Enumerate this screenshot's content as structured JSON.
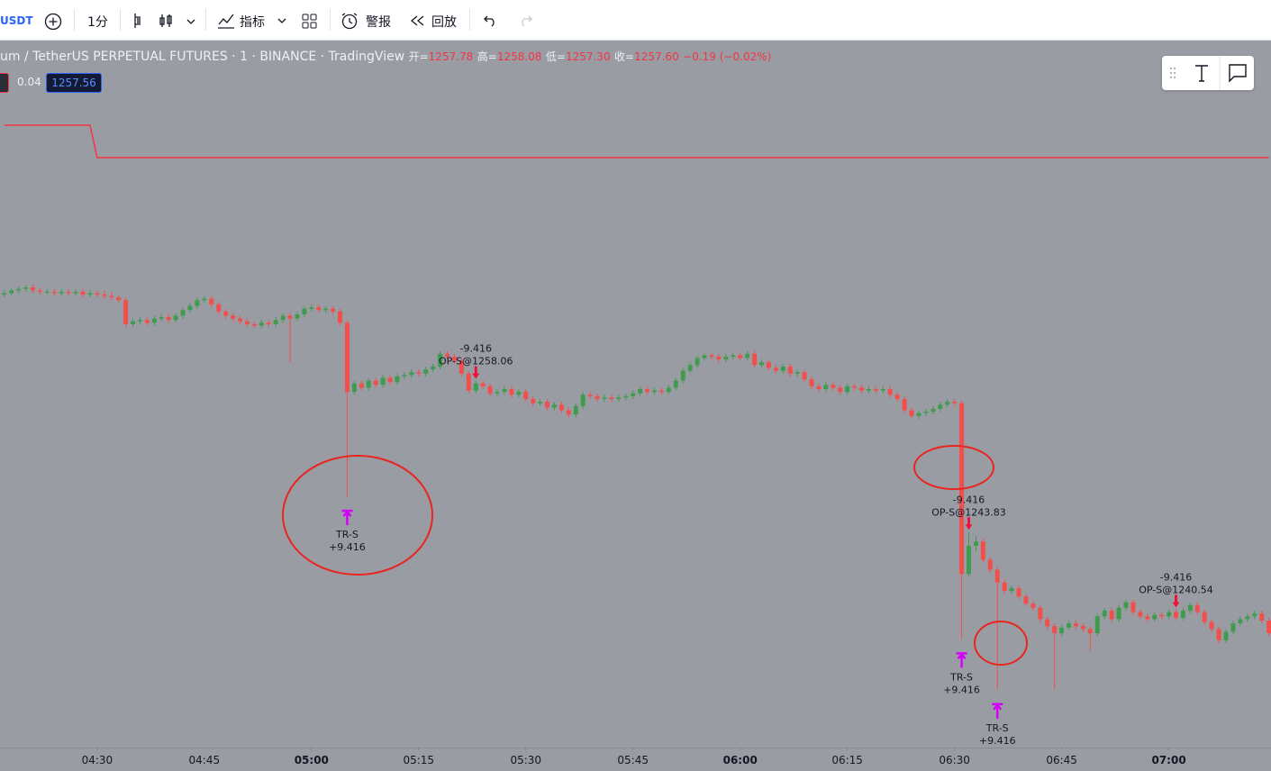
{
  "toolbar": {
    "symbol": "USDT",
    "interval": "1分",
    "indicators": "指标",
    "alerts": "警报",
    "replay": "回放"
  },
  "legend": {
    "title": "um / TetherUS PERPETUAL FUTURES · 1 · BINANCE · TradingView",
    "open_label": "开=",
    "open": "1257.78",
    "high_label": "高=",
    "high": "1258.08",
    "low_label": "低=",
    "low": "1257.30",
    "close_label": "收=",
    "close": "1257.60",
    "change": "−0.19 (−0.02%)",
    "indicator_value": "0.04",
    "price_badge": "1257.56"
  },
  "chart_data": {
    "type": "candlestick",
    "x": [
      257,
      258,
      259,
      260,
      261,
      262,
      263,
      264,
      265,
      266,
      267,
      268,
      269,
      270,
      271,
      272,
      273,
      274,
      275,
      276,
      277,
      278,
      279,
      280,
      281,
      282,
      283,
      284,
      285,
      286,
      287,
      288,
      289,
      290,
      291,
      292,
      293,
      294,
      295,
      296,
      297,
      298,
      299,
      300,
      301,
      302,
      303,
      304,
      305,
      306,
      307,
      308,
      309,
      310,
      311,
      312,
      313,
      314,
      315,
      316,
      317,
      318,
      319,
      320,
      321,
      322,
      323,
      324,
      325,
      326,
      327,
      328,
      329,
      330,
      331,
      332,
      333,
      334,
      335,
      336,
      337,
      338,
      339,
      340,
      341,
      342,
      343,
      344,
      345,
      346,
      347,
      348,
      349,
      350,
      351,
      352,
      353,
      354,
      355,
      356,
      357,
      358,
      359,
      360,
      361,
      362,
      363,
      364,
      365,
      366,
      367,
      368,
      369,
      370,
      371,
      372,
      373,
      374,
      375,
      376,
      377,
      378,
      379,
      380,
      381,
      382,
      383,
      384,
      385,
      386,
      387,
      388,
      389,
      390,
      391,
      392,
      393,
      394,
      395,
      396,
      397,
      398,
      399,
      400,
      401,
      402,
      403,
      404,
      405,
      406,
      407,
      408,
      409,
      410,
      411,
      412,
      413,
      414,
      415,
      416,
      417,
      418,
      419,
      420,
      421,
      422,
      423,
      424,
      425,
      426,
      427,
      428,
      429,
      430,
      431,
      432,
      433,
      434
    ],
    "open": [
      1263.4,
      1263.5,
      1263.7,
      1263.8,
      1263.9,
      1263.7,
      1263.6,
      1263.6,
      1263.5,
      1263.6,
      1263.5,
      1263.6,
      1263.4,
      1263.5,
      1263.4,
      1263.3,
      1263.2,
      1263.0,
      1261.3,
      1261.5,
      1261.6,
      1261.4,
      1261.7,
      1261.8,
      1261.6,
      1261.9,
      1262.3,
      1262.6,
      1263.0,
      1263.1,
      1262.7,
      1262.2,
      1261.9,
      1261.7,
      1261.5,
      1261.3,
      1261.2,
      1261.4,
      1261.3,
      1261.6,
      1261.9,
      1261.7,
      1262.0,
      1262.4,
      1262.5,
      1262.3,
      1262.4,
      1262.2,
      1261.4,
      1256.5,
      1257.1,
      1256.8,
      1257.3,
      1257.0,
      1257.5,
      1257.2,
      1257.6,
      1257.7,
      1257.9,
      1257.8,
      1258.1,
      1258.3,
      1259.2,
      1259.0,
      1258.7,
      1257.8,
      1256.6,
      1257.1,
      1256.9,
      1256.4,
      1256.5,
      1256.7,
      1256.3,
      1256.5,
      1256.0,
      1255.7,
      1255.8,
      1255.4,
      1255.6,
      1255.2,
      1254.9,
      1255.5,
      1256.3,
      1256.2,
      1256.0,
      1256.1,
      1256.0,
      1256.1,
      1256.2,
      1256.4,
      1256.7,
      1256.5,
      1256.6,
      1256.5,
      1256.8,
      1257.3,
      1258.0,
      1258.4,
      1258.9,
      1259.1,
      1259.0,
      1258.8,
      1259.0,
      1259.1,
      1258.9,
      1259.2,
      1258.4,
      1258.6,
      1258.2,
      1258.0,
      1258.3,
      1257.8,
      1257.9,
      1257.4,
      1256.9,
      1256.7,
      1257.0,
      1256.8,
      1256.5,
      1256.9,
      1256.8,
      1256.6,
      1256.7,
      1256.6,
      1256.7,
      1256.3,
      1256.0,
      1255.2,
      1254.8,
      1255.0,
      1255.1,
      1255.3,
      1255.6,
      1255.8,
      1255.7,
      1243.6,
      1245.6,
      1245.9,
      1244.6,
      1243.9,
      1243.0,
      1242.4,
      1242.6,
      1242.0,
      1241.5,
      1241.2,
      1240.4,
      1239.9,
      1239.4,
      1239.8,
      1240.1,
      1239.9,
      1239.7,
      1239.4,
      1240.6,
      1241.0,
      1240.4,
      1241.2,
      1241.6,
      1240.9,
      1240.6,
      1240.4,
      1240.7,
      1240.6,
      1240.9,
      1240.5,
      1241.0,
      1241.4,
      1240.9,
      1240.2,
      1239.7,
      1238.9,
      1239.5,
      1240.1,
      1240.4,
      1240.6,
      1240.8,
      1240.3
    ],
    "high": [
      1263.7,
      1263.9,
      1264.0,
      1264.1,
      1264.1,
      1263.9,
      1263.8,
      1263.8,
      1263.8,
      1263.8,
      1263.8,
      1263.8,
      1263.7,
      1263.7,
      1263.7,
      1263.6,
      1263.4,
      1263.2,
      1261.7,
      1261.8,
      1261.8,
      1261.9,
      1262.0,
      1262.0,
      1262.1,
      1262.5,
      1262.8,
      1263.2,
      1263.3,
      1263.3,
      1262.9,
      1262.4,
      1262.1,
      1261.9,
      1261.7,
      1261.5,
      1261.6,
      1261.6,
      1261.8,
      1262.1,
      1262.1,
      1262.2,
      1262.6,
      1262.7,
      1262.7,
      1262.6,
      1262.6,
      1262.4,
      1261.6,
      1257.3,
      1257.3,
      1257.5,
      1257.5,
      1257.7,
      1257.7,
      1257.8,
      1257.9,
      1258.1,
      1258.1,
      1258.3,
      1258.5,
      1259.4,
      1259.4,
      1259.2,
      1258.9,
      1258.0,
      1257.3,
      1257.3,
      1257.1,
      1256.7,
      1256.9,
      1256.9,
      1256.7,
      1256.7,
      1256.2,
      1256.0,
      1256.0,
      1255.8,
      1255.8,
      1255.4,
      1255.7,
      1256.5,
      1256.5,
      1256.4,
      1256.3,
      1256.3,
      1256.3,
      1256.4,
      1256.6,
      1256.9,
      1256.9,
      1256.8,
      1256.8,
      1257.0,
      1257.5,
      1258.2,
      1258.6,
      1259.1,
      1259.3,
      1259.3,
      1259.2,
      1259.2,
      1259.3,
      1259.3,
      1259.4,
      1259.4,
      1258.8,
      1258.8,
      1258.4,
      1258.5,
      1258.5,
      1258.1,
      1258.1,
      1257.6,
      1257.1,
      1257.2,
      1257.2,
      1257.0,
      1257.1,
      1257.1,
      1257.0,
      1256.9,
      1256.9,
      1256.9,
      1256.9,
      1256.5,
      1256.2,
      1255.4,
      1255.2,
      1255.3,
      1255.5,
      1255.8,
      1256.0,
      1256.0,
      1255.9,
      1246.6,
      1246.3,
      1246.1,
      1244.8,
      1244.1,
      1243.2,
      1242.8,
      1242.8,
      1242.2,
      1241.7,
      1241.4,
      1240.6,
      1240.1,
      1240.0,
      1240.3,
      1240.3,
      1240.1,
      1239.9,
      1240.8,
      1241.2,
      1241.2,
      1241.4,
      1241.8,
      1241.8,
      1241.1,
      1240.8,
      1240.9,
      1240.9,
      1241.1,
      1241.1,
      1241.2,
      1241.6,
      1241.6,
      1241.1,
      1240.4,
      1239.9,
      1239.7,
      1240.3,
      1240.6,
      1240.8,
      1241.0,
      1241.0,
      1240.5
    ],
    "low": [
      1263.2,
      1263.3,
      1263.5,
      1263.6,
      1263.5,
      1263.4,
      1263.4,
      1263.3,
      1263.3,
      1263.3,
      1263.3,
      1263.2,
      1263.2,
      1263.2,
      1263.1,
      1263.0,
      1262.8,
      1261.1,
      1261.1,
      1261.3,
      1261.2,
      1261.2,
      1261.5,
      1261.4,
      1261.4,
      1261.7,
      1262.1,
      1262.4,
      1262.8,
      1262.5,
      1262.0,
      1261.7,
      1261.5,
      1261.3,
      1261.1,
      1261.0,
      1261.0,
      1261.1,
      1261.1,
      1261.4,
      1258.6,
      1261.5,
      1261.8,
      1262.2,
      1262.1,
      1262.1,
      1262.0,
      1261.2,
      1249.1,
      1256.3,
      1256.6,
      1256.6,
      1256.8,
      1256.8,
      1257.0,
      1257.0,
      1257.4,
      1257.5,
      1257.6,
      1257.6,
      1257.9,
      1258.1,
      1258.8,
      1258.5,
      1257.6,
      1256.4,
      1256.4,
      1256.7,
      1256.2,
      1256.2,
      1256.3,
      1256.1,
      1256.1,
      1255.8,
      1255.5,
      1255.5,
      1255.2,
      1255.2,
      1255.0,
      1254.7,
      1254.7,
      1255.3,
      1256.0,
      1255.8,
      1255.8,
      1255.8,
      1255.8,
      1255.9,
      1256.0,
      1256.2,
      1256.3,
      1256.3,
      1256.3,
      1256.3,
      1256.6,
      1257.1,
      1257.8,
      1258.2,
      1258.7,
      1258.8,
      1258.6,
      1258.6,
      1258.8,
      1258.7,
      1258.7,
      1258.2,
      1258.2,
      1258.0,
      1257.8,
      1257.8,
      1257.6,
      1257.6,
      1257.2,
      1256.7,
      1256.5,
      1256.5,
      1256.6,
      1256.3,
      1256.3,
      1256.6,
      1256.4,
      1256.4,
      1256.4,
      1256.4,
      1256.1,
      1255.8,
      1255.0,
      1254.6,
      1254.6,
      1254.8,
      1254.9,
      1255.1,
      1255.4,
      1255.5,
      1239.0,
      1243.4,
      1245.2,
      1244.4,
      1243.7,
      1235.4,
      1242.2,
      1242.2,
      1241.8,
      1241.3,
      1241.0,
      1240.2,
      1239.7,
      1235.4,
      1239.2,
      1239.6,
      1239.7,
      1239.5,
      1238.2,
      1239.2,
      1240.4,
      1240.2,
      1240.2,
      1241.0,
      1240.7,
      1240.4,
      1240.2,
      1240.2,
      1240.4,
      1240.4,
      1240.3,
      1240.3,
      1240.8,
      1240.7,
      1240.0,
      1239.5,
      1238.7,
      1238.7,
      1239.3,
      1239.9,
      1240.2,
      1240.4,
      1240.1,
      1239.2
    ],
    "close": [
      1263.5,
      1263.7,
      1263.8,
      1263.9,
      1263.7,
      1263.6,
      1263.6,
      1263.5,
      1263.6,
      1263.5,
      1263.6,
      1263.4,
      1263.5,
      1263.4,
      1263.3,
      1263.2,
      1263.0,
      1261.3,
      1261.5,
      1261.6,
      1261.4,
      1261.7,
      1261.8,
      1261.6,
      1261.9,
      1262.3,
      1262.6,
      1263.0,
      1263.1,
      1262.7,
      1262.2,
      1261.9,
      1261.7,
      1261.5,
      1261.3,
      1261.2,
      1261.4,
      1261.3,
      1261.6,
      1261.9,
      1261.7,
      1262.0,
      1262.4,
      1262.5,
      1262.3,
      1262.4,
      1262.2,
      1261.4,
      1256.5,
      1257.1,
      1256.8,
      1257.3,
      1257.0,
      1257.5,
      1257.2,
      1257.6,
      1257.7,
      1257.9,
      1257.8,
      1258.1,
      1258.3,
      1259.2,
      1259.0,
      1258.7,
      1257.8,
      1256.6,
      1257.1,
      1256.9,
      1256.4,
      1256.5,
      1256.7,
      1256.3,
      1256.5,
      1256.0,
      1255.7,
      1255.8,
      1255.4,
      1255.6,
      1255.2,
      1254.9,
      1255.5,
      1256.3,
      1256.2,
      1256.0,
      1256.1,
      1256.0,
      1256.1,
      1256.2,
      1256.4,
      1256.7,
      1256.5,
      1256.6,
      1256.5,
      1256.8,
      1257.3,
      1258.0,
      1258.4,
      1258.9,
      1259.1,
      1259.0,
      1258.8,
      1259.0,
      1259.1,
      1258.9,
      1259.2,
      1258.4,
      1258.6,
      1258.2,
      1258.0,
      1258.3,
      1257.8,
      1257.9,
      1257.4,
      1256.9,
      1256.7,
      1257.0,
      1256.8,
      1256.5,
      1256.9,
      1256.8,
      1256.6,
      1256.7,
      1256.6,
      1256.7,
      1256.3,
      1256.0,
      1255.2,
      1254.8,
      1255.0,
      1255.1,
      1255.3,
      1255.6,
      1255.8,
      1255.7,
      1243.6,
      1245.6,
      1245.9,
      1244.6,
      1243.9,
      1243.0,
      1242.4,
      1242.6,
      1242.0,
      1241.5,
      1241.2,
      1240.4,
      1239.9,
      1239.4,
      1239.8,
      1240.1,
      1239.9,
      1239.7,
      1239.4,
      1240.6,
      1241.0,
      1240.4,
      1241.2,
      1241.6,
      1240.9,
      1240.6,
      1240.4,
      1240.7,
      1240.6,
      1240.9,
      1240.5,
      1241.0,
      1241.4,
      1240.9,
      1240.2,
      1239.7,
      1238.9,
      1239.5,
      1240.1,
      1240.4,
      1240.6,
      1240.8,
      1240.3,
      1239.4
    ],
    "xlim": [
      256.4,
      434.3
    ],
    "ylim": [
      1231.3,
      1281.4
    ],
    "xticks": [
      {
        "value": 270,
        "label": "04:30"
      },
      {
        "value": 285,
        "label": "04:45"
      },
      {
        "value": 300,
        "label": "05:00"
      },
      {
        "value": 315,
        "label": "05:15"
      },
      {
        "value": 330,
        "label": "05:30"
      },
      {
        "value": 345,
        "label": "05:45"
      },
      {
        "value": 360,
        "label": "06:00"
      },
      {
        "value": 375,
        "label": "06:15"
      },
      {
        "value": 390,
        "label": "06:30"
      },
      {
        "value": 405,
        "label": "06:45"
      },
      {
        "value": 420,
        "label": "07:00"
      }
    ],
    "colors": {
      "up": "#3f9b4e",
      "down": "#f24f4c"
    },
    "indicator": {
      "x": [
        257,
        269,
        270,
        434
      ],
      "values": [
        1275.4,
        1275.4,
        1273.1,
        1273.1
      ],
      "color": "#f23645"
    },
    "entries": [
      {
        "x": 323,
        "pnl": "-9.416",
        "label": "OP-S@1258.06"
      },
      {
        "x": 392,
        "pnl": "-9.416",
        "label": "OP-S@1243.83"
      },
      {
        "x": 421,
        "pnl": "-9.416",
        "label": "OP-S@1240.54"
      }
    ],
    "exits": [
      {
        "x": 305,
        "label": "TR-S",
        "pnl": "+9.416"
      },
      {
        "x": 391,
        "label": "TR-S",
        "pnl": "+9.416"
      },
      {
        "x": 396,
        "label": "TR-S",
        "pnl": "+9.416"
      }
    ]
  }
}
